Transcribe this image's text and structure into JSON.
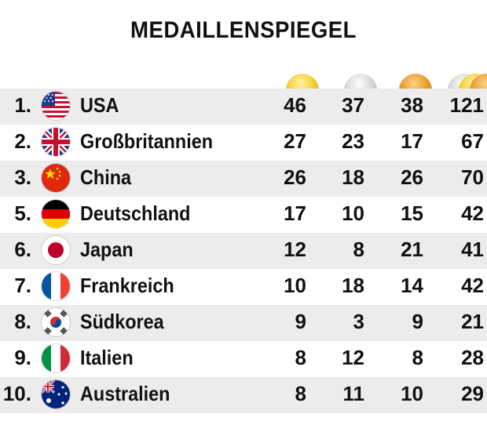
{
  "title": "MEDAILLENSPIEGEL",
  "columns": [
    {
      "key": "gold",
      "icon": "gold-medal-icon",
      "color": "#f4cd33"
    },
    {
      "key": "silver",
      "icon": "silver-medal-icon",
      "color": "#d6d6d6"
    },
    {
      "key": "bronze",
      "icon": "bronze-medal-icon",
      "color": "#e79a2b"
    },
    {
      "key": "total",
      "icon": "medals-stack-icon"
    }
  ],
  "rows": [
    {
      "rank": "1.",
      "country": "USA",
      "flag": "usa-flag-icon",
      "gold": "46",
      "silver": "37",
      "bronze": "38",
      "total": "121"
    },
    {
      "rank": "2.",
      "country": "Großbritannien",
      "flag": "uk-flag-icon",
      "gold": "27",
      "silver": "23",
      "bronze": "17",
      "total": "67"
    },
    {
      "rank": "3.",
      "country": "China",
      "flag": "china-flag-icon",
      "gold": "26",
      "silver": "18",
      "bronze": "26",
      "total": "70"
    },
    {
      "rank": "5.",
      "country": "Deutschland",
      "flag": "germany-flag-icon",
      "gold": "17",
      "silver": "10",
      "bronze": "15",
      "total": "42"
    },
    {
      "rank": "6.",
      "country": "Japan",
      "flag": "japan-flag-icon",
      "gold": "12",
      "silver": "8",
      "bronze": "21",
      "total": "41"
    },
    {
      "rank": "7.",
      "country": "Frankreich",
      "flag": "france-flag-icon",
      "gold": "10",
      "silver": "18",
      "bronze": "14",
      "total": "42"
    },
    {
      "rank": "8.",
      "country": "Südkorea",
      "flag": "south-korea-flag-icon",
      "gold": "9",
      "silver": "3",
      "bronze": "9",
      "total": "21"
    },
    {
      "rank": "9.",
      "country": "Italien",
      "flag": "italy-flag-icon",
      "gold": "8",
      "silver": "12",
      "bronze": "8",
      "total": "28"
    },
    {
      "rank": "10.",
      "country": "Australien",
      "flag": "australia-flag-icon",
      "gold": "8",
      "silver": "11",
      "bronze": "10",
      "total": "29"
    }
  ]
}
